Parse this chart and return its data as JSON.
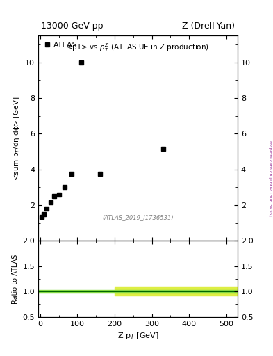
{
  "title_left": "13000 GeV pp",
  "title_right": "Z (Drell-Yan)",
  "inner_title": "<pT> vs $p_T^Z$ (ATLAS UE in Z production)",
  "watermark": "(ATLAS_2019_I1736531)",
  "side_label": "mcplots.cern.ch [arXiv:1306.3436]",
  "xlabel": "Z p$_T$ [GeV]",
  "ylabel": "<sum p$_T$/dη dϕ> [GeV]",
  "ylabel_ratio": "Ratio to ATLAS",
  "legend_label": "ATLAS",
  "data_x": [
    5,
    10,
    18,
    28,
    38,
    50,
    65,
    85,
    110,
    160,
    330
  ],
  "data_y": [
    1.35,
    1.5,
    1.8,
    2.15,
    2.5,
    2.6,
    3.0,
    3.75,
    10.0,
    3.75,
    5.15
  ],
  "ylim_main": [
    0.0,
    11.5
  ],
  "ylim_ratio": [
    0.5,
    2.0
  ],
  "xlim": [
    -5,
    530
  ],
  "ratio_green_band_lo": 0.97,
  "ratio_green_band_hi": 1.03,
  "ratio_yellow_band_lo": 0.92,
  "ratio_yellow_band_hi": 1.08,
  "ratio_yellow_xstart": 200,
  "ratio_band_green_color": "#88dd44",
  "ratio_band_yellow_color": "#ddee44",
  "ratio_line_color": "#006600",
  "marker_color": "black",
  "marker_style": "s",
  "marker_size": 5,
  "background_color": "white",
  "tick_direction": "in",
  "yticks_main": [
    2,
    4,
    6,
    8,
    10
  ],
  "yticks_ratio": [
    0.5,
    1.0,
    1.5,
    2.0
  ],
  "xticks": [
    0,
    100,
    200,
    300,
    400,
    500
  ]
}
